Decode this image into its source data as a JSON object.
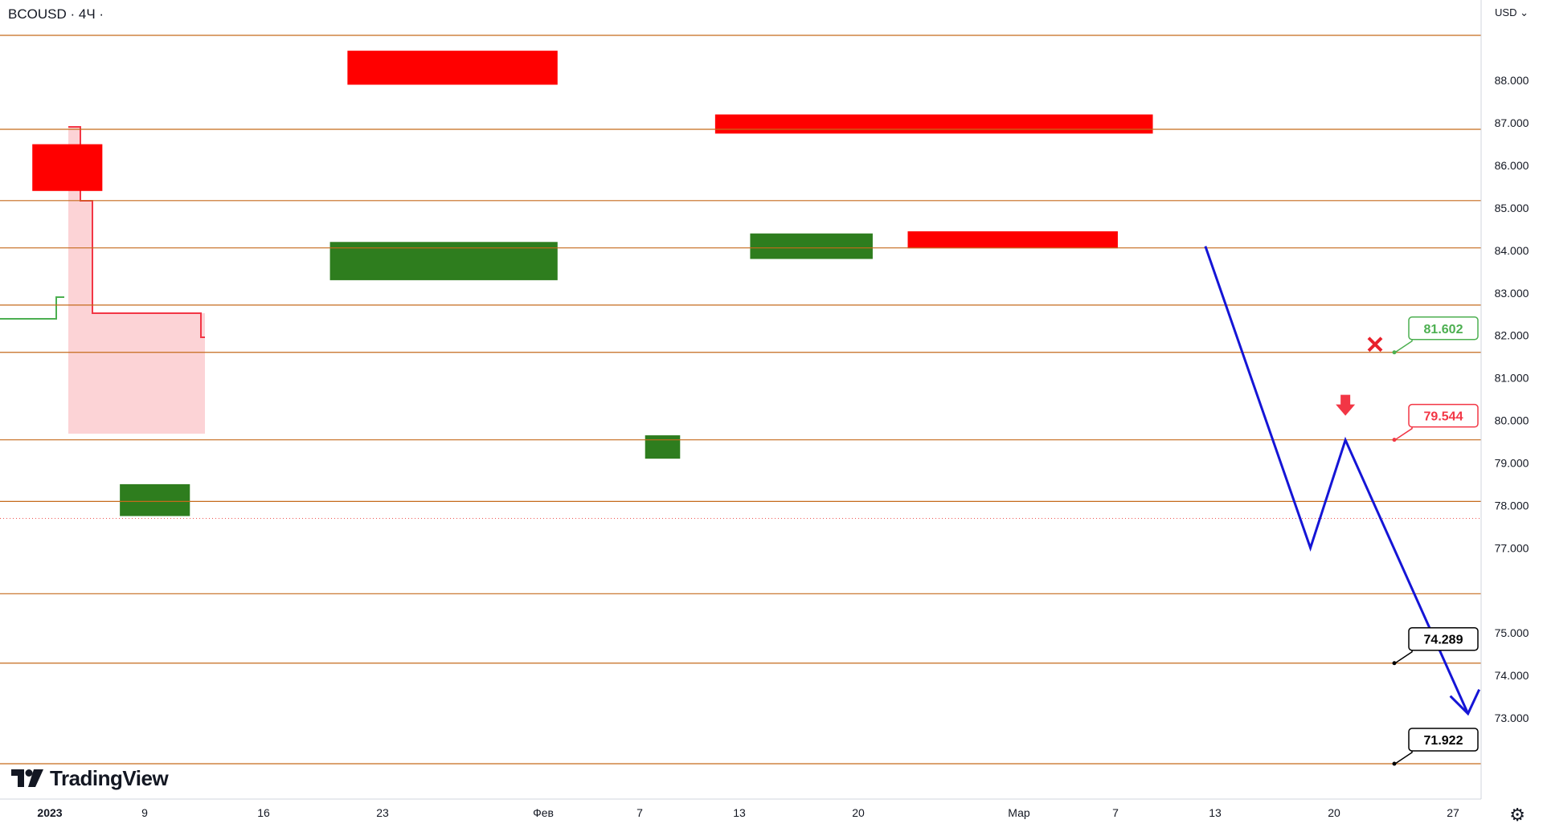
{
  "header": {
    "symbol": "BCOUSD",
    "interval": "4Ч",
    "currency": "USD",
    "currency_caret": "⌄"
  },
  "branding": {
    "logo_text": "TradingView"
  },
  "chart_data": {
    "type": "candlestick",
    "symbol": "BCOUSD",
    "interval": "4Ч",
    "y_axis": {
      "ticks": [
        77.0,
        78.0,
        79.0,
        80.0,
        81.0,
        82.0,
        83.0,
        84.0,
        85.0,
        86.0,
        87.0,
        88.0,
        73.0,
        74.0,
        75.0
      ],
      "range": [
        70.5,
        89.5
      ]
    },
    "x_axis": {
      "ticks": [
        {
          "label": "2023",
          "bold": true
        },
        {
          "label": "9"
        },
        {
          "label": "16"
        },
        {
          "label": "23"
        },
        {
          "label": "Фев"
        },
        {
          "label": "7"
        },
        {
          "label": "13"
        },
        {
          "label": "20"
        },
        {
          "label": "Мар"
        },
        {
          "label": "7"
        },
        {
          "label": "13"
        },
        {
          "label": "20"
        },
        {
          "label": "27"
        }
      ]
    },
    "current_price": 77.694,
    "horizontal_levels": [
      89.062,
      86.851,
      85.173,
      84.06,
      82.715,
      81.602,
      79.544,
      78.095,
      75.922,
      74.289,
      71.922
    ],
    "callouts": [
      {
        "label": "81.602",
        "value": 81.602,
        "color": "#4caf50",
        "marker": "cross"
      },
      {
        "label": "79.544",
        "value": 79.544,
        "color": "#f23645",
        "marker": "arrow-down"
      },
      {
        "label": "74.289",
        "value": 74.289,
        "color": "#000000"
      },
      {
        "label": "71.922",
        "value": 71.922,
        "color": "#000000"
      }
    ],
    "forecast_path": [
      {
        "x": "2023-03-09",
        "y": 84.1
      },
      {
        "x": "2023-03-15",
        "y": 77.0
      },
      {
        "x": "2023-03-17",
        "y": 79.54
      },
      {
        "x": "2023-03-24",
        "y": 73.1
      }
    ],
    "supply_zones": [
      {
        "from": "2023-01-01",
        "to": "2023-01-05",
        "low": 85.4,
        "high": 86.5
      },
      {
        "from": "2023-01-19",
        "to": "2023-01-31",
        "low": 87.9,
        "high": 88.7
      },
      {
        "from": "2023-02-09",
        "to": "2023-03-06",
        "low": 86.75,
        "high": 87.2
      },
      {
        "from": "2023-02-20",
        "to": "2023-03-04",
        "low": 84.05,
        "high": 84.45
      }
    ],
    "demand_zones": [
      {
        "from": "2023-01-06",
        "to": "2023-01-10",
        "low": 77.75,
        "high": 78.5
      },
      {
        "from": "2023-01-18",
        "to": "2023-01-31",
        "low": 83.3,
        "high": 84.2
      },
      {
        "from": "2023-02-05",
        "to": "2023-02-07",
        "low": 79.1,
        "high": 79.65
      },
      {
        "from": "2023-02-11",
        "to": "2023-02-18",
        "low": 83.8,
        "high": 84.4
      }
    ],
    "colors": {
      "up": "#26a69a",
      "down": "#ef5350",
      "level": "#c56a1b",
      "supply": "#ff0000",
      "demand": "#2e7d1e",
      "forecast": "#1515d6",
      "trail_up": "#4caf50",
      "trail_down": "#f23645"
    }
  }
}
